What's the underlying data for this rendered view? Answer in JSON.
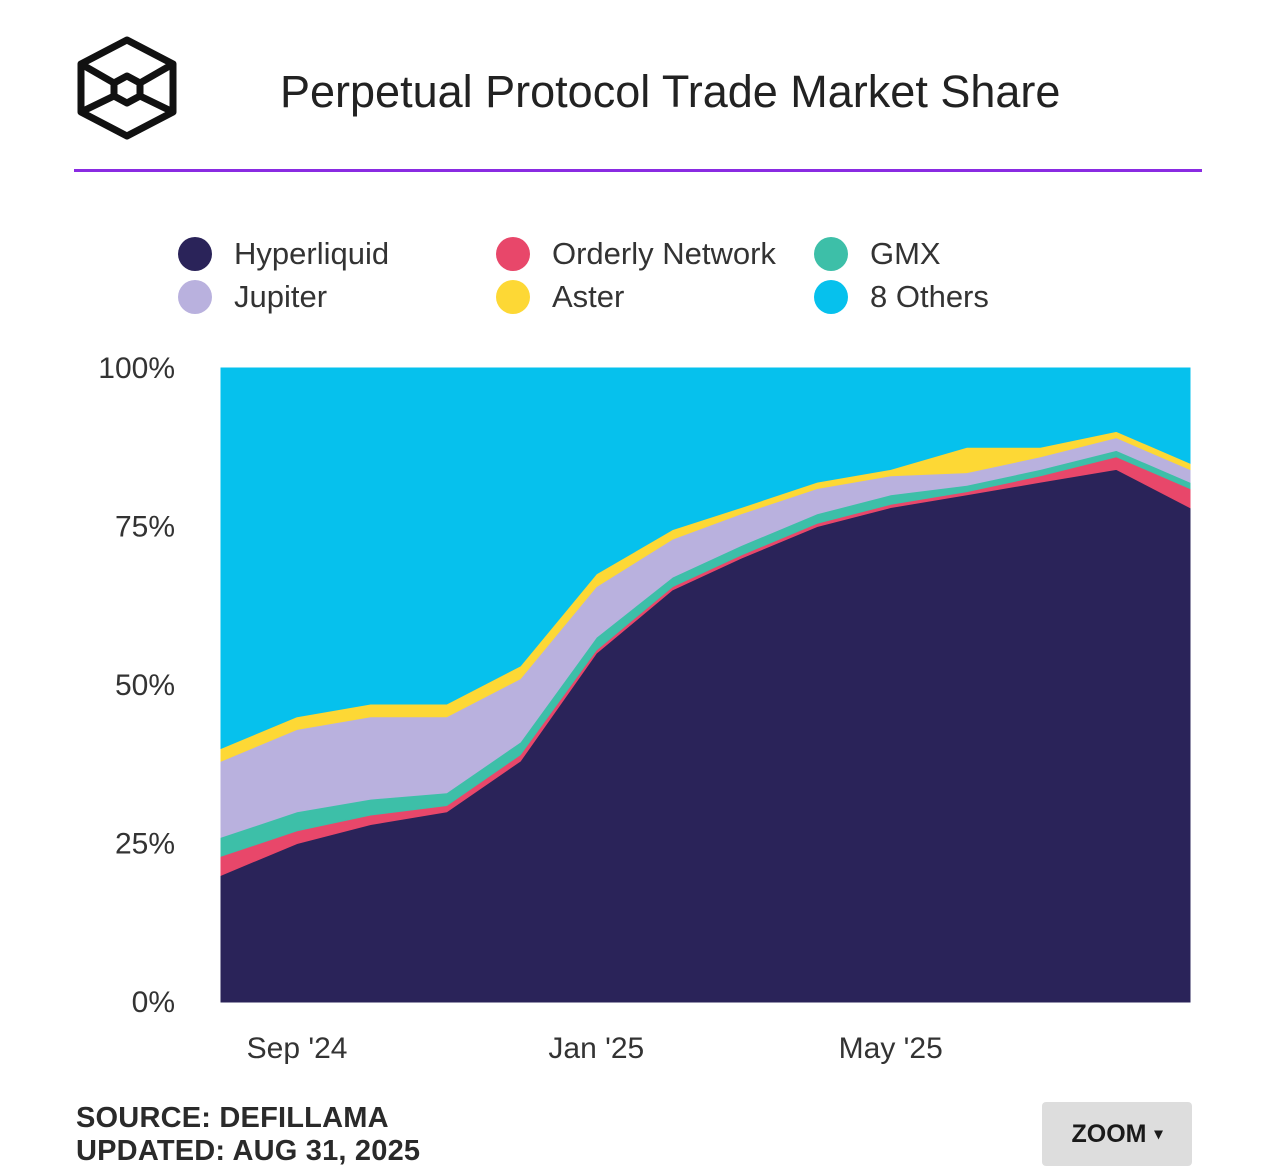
{
  "colors": {
    "accent_rule": "#8a2be2",
    "zoom_bg": "#dddddd"
  },
  "header": {
    "logo_icon": "cube-logo-icon",
    "title": "Perpetual Protocol Trade Market Share"
  },
  "footer": {
    "source": "SOURCE: DEFILLAMA",
    "updated": "UPDATED: AUG 31, 2025",
    "zoom_label": "ZOOM",
    "zoom_caret": "▾"
  },
  "chart_data": {
    "type": "area",
    "stacked": true,
    "normalized": true,
    "title": "Perpetual Protocol Trade Market Share",
    "x_range": [
      "2024-08-01",
      "2025-08-31"
    ],
    "x_ticks": [
      {
        "label": "Sep '24",
        "date": "2024-09-01"
      },
      {
        "label": "Jan '25",
        "date": "2025-01-01"
      },
      {
        "label": "May '25",
        "date": "2025-05-01"
      }
    ],
    "ylim": [
      0,
      100
    ],
    "y_ticks": [
      "0%",
      "25%",
      "50%",
      "75%",
      "100%"
    ],
    "y_tick_values": [
      0,
      25,
      50,
      75,
      100
    ],
    "grid": false,
    "legend_position": "top",
    "x": [
      "2024-08-01",
      "2024-09-01",
      "2024-10-01",
      "2024-11-01",
      "2024-12-01",
      "2025-01-01",
      "2025-02-01",
      "2025-03-01",
      "2025-04-01",
      "2025-05-01",
      "2025-06-01",
      "2025-07-01",
      "2025-08-01",
      "2025-08-31"
    ],
    "series": [
      {
        "name": "Hyperliquid",
        "color": "#2a2359",
        "values": [
          20,
          25,
          28,
          30,
          38,
          55,
          65,
          70,
          75,
          78,
          80,
          82,
          84,
          78
        ]
      },
      {
        "name": "Orderly Network",
        "color": "#e8476a",
        "values": [
          3,
          2,
          1.5,
          1,
          1,
          0.5,
          0.5,
          0.5,
          0.5,
          0.5,
          0.5,
          1,
          2,
          3
        ]
      },
      {
        "name": "GMX",
        "color": "#3dbfa8",
        "values": [
          3,
          3,
          2.5,
          2,
          2,
          2,
          1.5,
          1.5,
          1.5,
          1.5,
          1,
          1,
          1,
          1
        ]
      },
      {
        "name": "Jupiter",
        "color": "#b9b1de",
        "values": [
          12,
          13,
          13,
          12,
          10,
          8,
          6,
          5,
          4,
          3,
          2,
          2,
          2,
          2
        ]
      },
      {
        "name": "Aster",
        "color": "#fdd835",
        "values": [
          2,
          2,
          2,
          2,
          2,
          2,
          1.5,
          1,
          1,
          1,
          4,
          1.5,
          1,
          1
        ]
      },
      {
        "name": "8 Others",
        "color": "#06c1ed",
        "values": [
          60,
          55,
          53,
          53,
          47,
          32.5,
          25.5,
          22,
          18,
          16,
          12.5,
          12.5,
          10,
          15
        ]
      }
    ]
  }
}
